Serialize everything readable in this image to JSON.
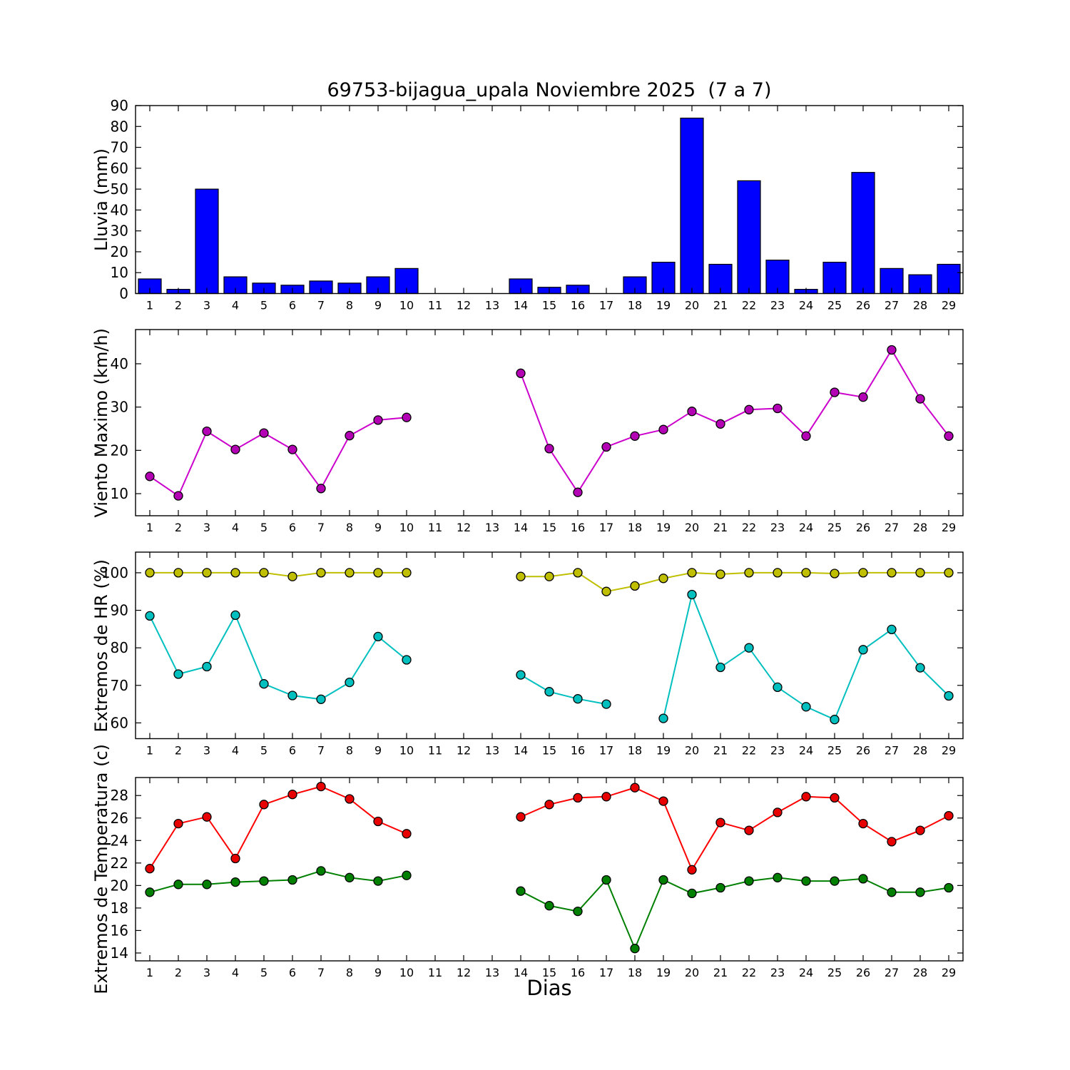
{
  "title": "69753-bijagua_upala Noviembre 2025  (7 a 7)",
  "xlabel": "Dias",
  "days": [
    1,
    2,
    3,
    4,
    5,
    6,
    7,
    8,
    9,
    10,
    11,
    12,
    13,
    14,
    15,
    16,
    17,
    18,
    19,
    20,
    21,
    22,
    23,
    24,
    25,
    26,
    27,
    28,
    29
  ],
  "colors": {
    "rain_bar": "#0000ff",
    "bar_edge": "#000000",
    "wind_line": "#cc00cc",
    "hr_max_line": "#bfbf00",
    "hr_min_line": "#00bfbf",
    "temp_max_line": "#ff0000",
    "temp_min_line": "#008000",
    "axis": "#000000"
  },
  "chart_data": [
    {
      "type": "bar",
      "name": "lluvia",
      "ylabel": "Lluvia (mm)",
      "ylim": [
        0,
        90
      ],
      "yticks": [
        0,
        10,
        20,
        30,
        40,
        50,
        60,
        70,
        80,
        90
      ],
      "bar_color": "#0000ff",
      "values": [
        7,
        2,
        50,
        8,
        5,
        4,
        6,
        5,
        8,
        12,
        null,
        null,
        null,
        7,
        3,
        4,
        0,
        8,
        15,
        84,
        14,
        54,
        16,
        2,
        15,
        58,
        12,
        9,
        14
      ]
    },
    {
      "type": "line",
      "name": "viento",
      "ylabel": "Viento Maximo (km/h)",
      "ylim": [
        4.9,
        47.9
      ],
      "yticks": [
        10,
        20,
        30,
        40
      ],
      "series": [
        {
          "name": "viento_maximo",
          "color": "#cc00cc",
          "marker_color": "#b400b4",
          "values": [
            14,
            9.5,
            24.4,
            20.2,
            24,
            20.2,
            11.2,
            23.4,
            27,
            27.6,
            null,
            null,
            null,
            37.8,
            20.4,
            10.3,
            20.8,
            23.3,
            24.8,
            29,
            26.1,
            29.4,
            29.7,
            23.3,
            33.4,
            32.3,
            43.2,
            31.9,
            23.3
          ]
        }
      ]
    },
    {
      "type": "line",
      "name": "hr",
      "ylabel": "Extremos de HR (%)",
      "ylim": [
        55.8,
        105.5
      ],
      "yticks": [
        60,
        70,
        80,
        90,
        100
      ],
      "series": [
        {
          "name": "hr_maxima",
          "color": "#bfbf00",
          "marker_color": "#bfbf00",
          "values": [
            100,
            100,
            100,
            100,
            100,
            99,
            100,
            100,
            100,
            100,
            null,
            null,
            null,
            99,
            99,
            100,
            95,
            96.5,
            98.5,
            100,
            99.6,
            100,
            100,
            100,
            99.8,
            100,
            100,
            100,
            100
          ]
        },
        {
          "name": "hr_minima",
          "color": "#00bfbf",
          "marker_color": "#00bfbf",
          "values": [
            88.5,
            73,
            75,
            88.7,
            70.4,
            67.3,
            66.3,
            70.8,
            83,
            76.8,
            null,
            null,
            null,
            72.8,
            68.3,
            66.4,
            65,
            null,
            61.2,
            94.2,
            74.8,
            80,
            69.5,
            64.3,
            60.9,
            79.5,
            84.9,
            74.7,
            67.2
          ]
        }
      ]
    },
    {
      "type": "line",
      "name": "temperatura",
      "ylabel": "Extremos de Temperatura (c)",
      "ylim": [
        13.3,
        29.6
      ],
      "yticks": [
        14,
        16,
        18,
        20,
        22,
        24,
        26,
        28
      ],
      "series": [
        {
          "name": "temperatura_maxima",
          "color": "#ff0000",
          "marker_color": "#e80000",
          "values": [
            21.5,
            25.5,
            26.1,
            22.4,
            27.2,
            28.1,
            28.8,
            27.7,
            25.7,
            24.6,
            null,
            null,
            null,
            26.1,
            27.2,
            27.8,
            27.9,
            28.7,
            27.5,
            21.4,
            25.6,
            24.9,
            26.5,
            27.9,
            27.8,
            25.5,
            23.9,
            24.9,
            26.2
          ]
        },
        {
          "name": "temperatura_minima",
          "color": "#008000",
          "marker_color": "#008000",
          "values": [
            19.4,
            20.1,
            20.1,
            20.3,
            20.4,
            20.5,
            21.3,
            20.7,
            20.4,
            20.9,
            null,
            null,
            null,
            19.5,
            18.2,
            17.7,
            20.5,
            14.4,
            20.5,
            19.3,
            19.8,
            20.4,
            20.7,
            20.4,
            20.4,
            20.6,
            19.4,
            19.4,
            19.8
          ]
        }
      ]
    }
  ]
}
